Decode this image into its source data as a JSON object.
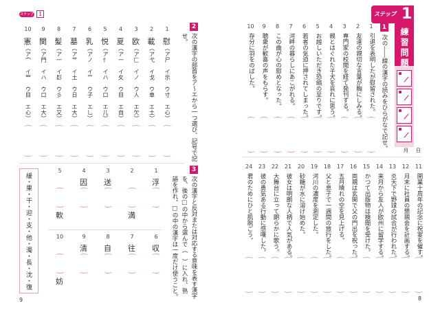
{
  "right_page": {
    "step_label": "ステップ",
    "step_number": "1",
    "title": "練習問題",
    "check_boxes": 4,
    "date_month": "月",
    "date_day": "日",
    "page_number": "8",
    "section1": {
      "marker": "1",
      "instruction": "次の――線の漢字の読みをひらがなで記せ。",
      "items": [
        {
          "n": "1",
          "text": "引退を表明したが慰留された。"
        },
        {
          "n": "2",
          "text": "友達の親切な言葉が胸にしみる。"
        },
        {
          "n": "3",
          "text": "専門家の校閲を経て発刊する。"
        },
        {
          "n": "4",
          "text": "親とはぐれた子犬を哀れに思う。"
        },
        {
          "n": "5",
          "text": "お越しいただき恐縮の至りです。"
        },
        {
          "n": "6",
          "text": "若者の気迫に押されてしまった。"
        },
        {
          "n": "7",
          "text": "河畔の暮らしにあこがれる。"
        },
        {
          "n": "8",
          "text": "この曲が心の慰めとなった。"
        },
        {
          "n": "9",
          "text": "聴衆が歓喜の声をもらす。"
        },
        {
          "n": "10",
          "text": "存分に羽をのばした。"
        },
        {
          "n": "11",
          "text": "開業十周年の記念に祝宴を催す。"
        },
        {
          "n": "12",
          "text": "月末に社員の懇親会を計画する。"
        },
        {
          "n": "13",
          "text": "炎天下で野球の試合が行われた。"
        },
        {
          "n": "14",
          "text": "来月から友人が欧州に留学する。"
        },
        {
          "n": "15",
          "text": "かつて出版物は検閲を受けた。"
        },
        {
          "n": "16",
          "text": "両親は玄関で父の門出を祝った。"
        },
        {
          "n": "17",
          "text": "五月晴れの空を見上げる。"
        },
        {
          "n": "18",
          "text": "父と息子で一週間の旅行をした。"
        },
        {
          "n": "19",
          "text": "河川の濃度を測定した。"
        },
        {
          "n": "20",
          "text": "砂糖が水に溶け始めた。"
        },
        {
          "n": "21",
          "text": "彼女は明朗な人柄で人気がある。"
        },
        {
          "n": "22",
          "text": "大舞台に立って朗らかに歌う。"
        },
        {
          "n": "23",
          "text": "彼の勇気ある行動に感嘆した。"
        },
        {
          "n": "24",
          "text": "君のためにひと肌脱ごう。"
        }
      ]
    }
  },
  "left_page": {
    "step_label": "ステップ",
    "step_number": "1",
    "page_number": "9",
    "section2": {
      "marker": "2",
      "instruction": "次の漢字の部首をア〜エから一つ選び、記号で記",
      "instruction_end": "せ。",
      "items": [
        {
          "n": "1",
          "kanji": "慰",
          "options": "（ア尸　イ示　ウ寸　エ心）"
        },
        {
          "n": "2",
          "kanji": "載",
          "options": "（ア弋　イ戈　ウ車　エ土）"
        },
        {
          "n": "3",
          "kanji": "欧",
          "options": "（ア匚　イノ　ウ人　エ欠）"
        },
        {
          "n": "4",
          "kanji": "夏",
          "options": "（ア一　イ夂　ウ目　エ自）"
        },
        {
          "n": "5",
          "kanji": "悦",
          "options": "（ア忄　イハ　ウ口　エ儿）"
        },
        {
          "n": "6",
          "kanji": "乳",
          "options": "（アノ　イ爫　ウ子　エ乚）"
        },
        {
          "n": "7",
          "kanji": "墓",
          "options": "（ア艹　イ土　ウ日　エ大）"
        },
        {
          "n": "8",
          "kanji": "髪",
          "options": "（ア一　イ髟　ウ彡　エ又）"
        },
        {
          "n": "9",
          "kanji": "関",
          "options": "（ア門　イハ　ウ口　エ大）"
        },
        {
          "n": "10",
          "kanji": "憲",
          "options": "（ア宀　イ罒　ウ目　エ心）"
        }
      ]
    },
    "section3": {
      "marker": "3",
      "instruction_lines": [
        "次の漢字と反対または対応する意味を表す漢字",
        "を、後の□の中から選んで（　）に入れ、熟",
        "語を作れ。□の中の漢字は一度だけ使うこと。"
      ],
      "items": [
        {
          "n": "1",
          "top": "浮",
          "bottom": ""
        },
        {
          "n": "2",
          "top": "",
          "bottom": "満"
        },
        {
          "n": "3",
          "top": "送",
          "bottom": ""
        },
        {
          "n": "4",
          "top": "因",
          "bottom": ""
        },
        {
          "n": "5",
          "top": "",
          "bottom": "軟"
        },
        {
          "n": "6",
          "top": "収",
          "bottom": ""
        },
        {
          "n": "7",
          "top": "往",
          "bottom": ""
        },
        {
          "n": "8",
          "top": "自",
          "bottom": ""
        },
        {
          "n": "9",
          "top": "清",
          "bottom": ""
        },
        {
          "n": "10",
          "top": "",
          "bottom": "妨"
        }
      ],
      "choices": "緩・果・干・迎・支・他・濁・長・沈・復"
    }
  },
  "colors": {
    "accent": "#d6176b",
    "accent_light": "#f6d5e3",
    "bracket": "#e99cbc"
  }
}
